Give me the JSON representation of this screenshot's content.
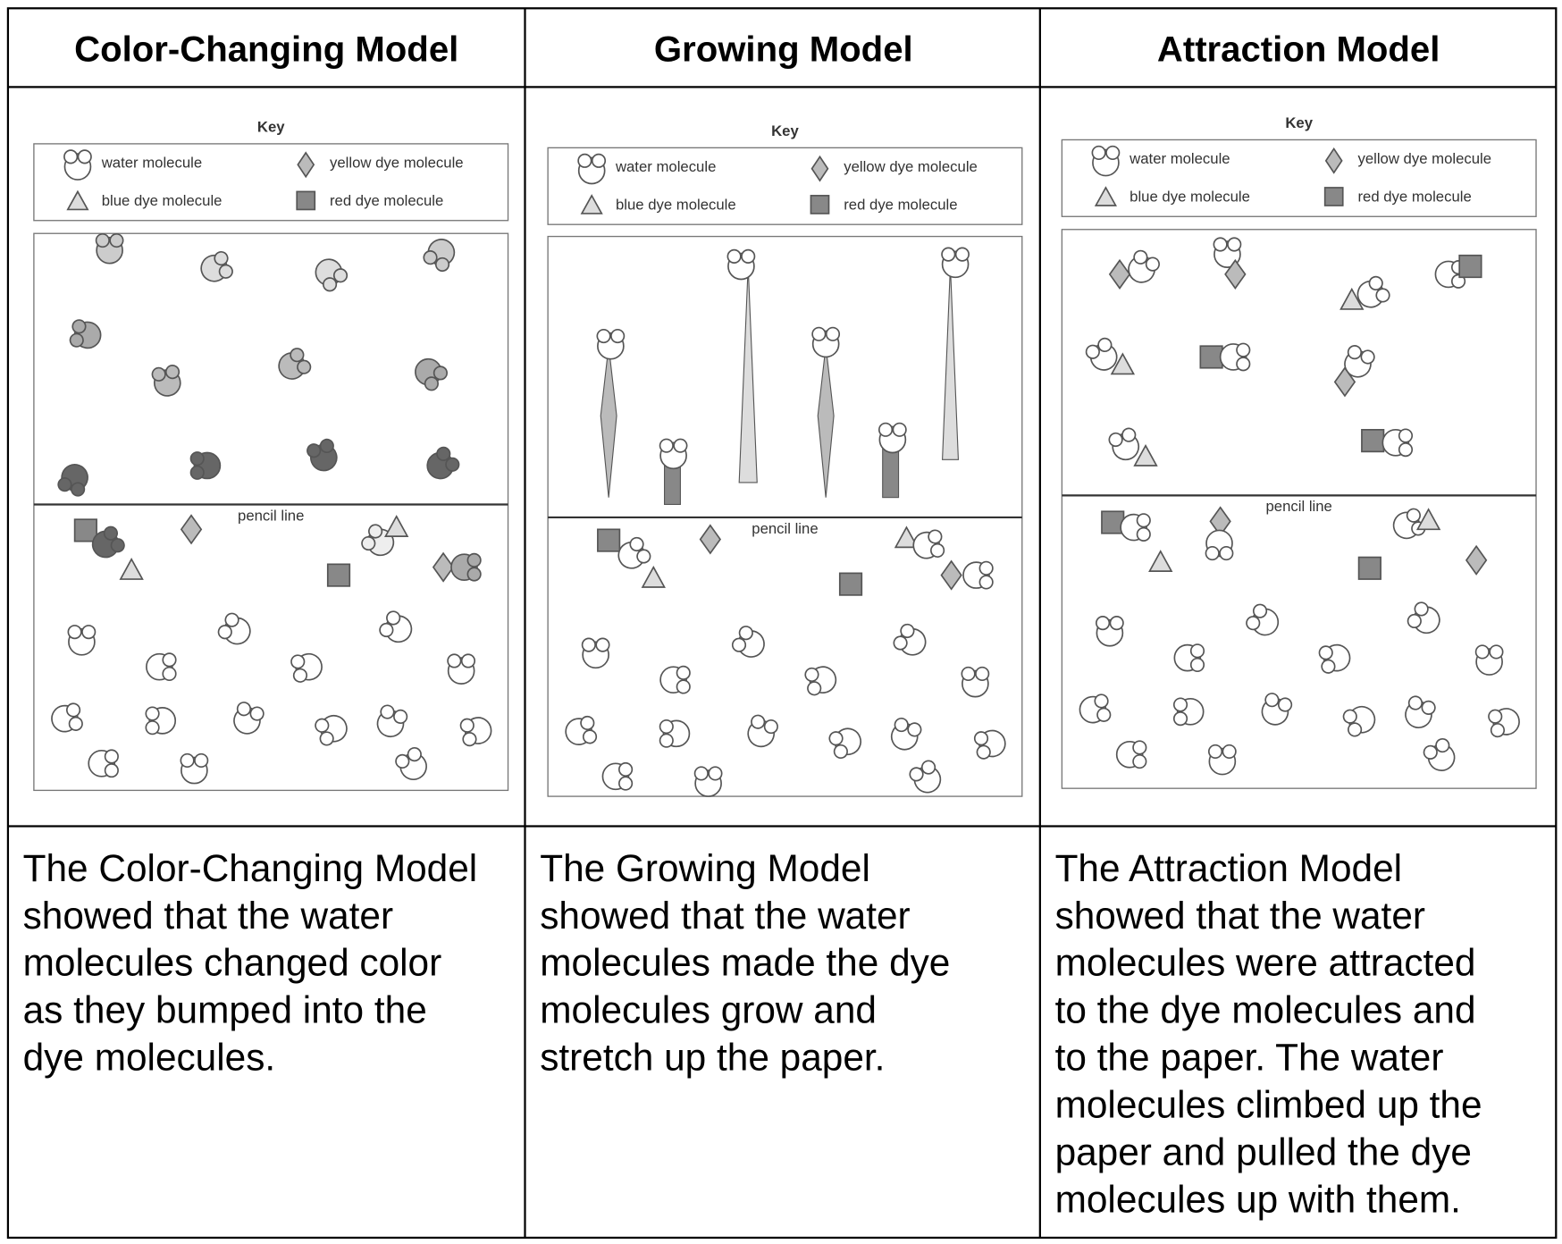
{
  "table": {
    "models": [
      {
        "title": "Color-Changing Model",
        "key_title": "Key",
        "key_items": [
          "water molecule",
          "yellow dye molecule",
          "blue dye molecule",
          "red dye molecule"
        ],
        "pencil_label": "pencil line",
        "description": [
          "The Color-Changing Model",
          "showed that the water",
          "molecules changed color",
          "as they bumped into the",
          "dye molecules."
        ]
      },
      {
        "title": "Growing Model",
        "key_title": "Key",
        "key_items": [
          "water molecule",
          "yellow dye molecule",
          "blue dye molecule",
          "red dye molecule"
        ],
        "pencil_label": "pencil line",
        "description": [
          "The Growing Model",
          "showed that the water",
          "molecules made the dye",
          "molecules grow and",
          "stretch up the paper."
        ]
      },
      {
        "title": "Attraction Model",
        "key_title": "Key",
        "key_items": [
          "water molecule",
          "yellow dye molecule",
          "blue dye molecule",
          "red dye molecule"
        ],
        "pencil_label": "pencil line",
        "description": [
          "The Attraction Model",
          "showed that the water",
          "molecules were attracted",
          "to the dye molecules and",
          "to the paper. The water",
          "molecules climbed up the",
          "paper and pulled the dye",
          "molecules up with them."
        ]
      }
    ]
  }
}
